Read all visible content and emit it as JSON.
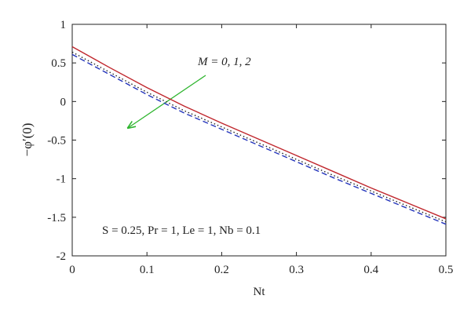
{
  "chart_data": {
    "type": "line",
    "x_label": "Nt",
    "y_label": "−φ′(0)",
    "annotations": [
      "M = 0, 1, 2",
      "S = 0.25, Pr = 1, Le = 1, Nb = 0.1"
    ],
    "x": [
      0,
      0.05,
      0.1,
      0.15,
      0.2,
      0.25,
      0.3,
      0.35,
      0.4,
      0.45,
      0.5
    ],
    "series": [
      {
        "name": "M = 0",
        "color": "#c0272d",
        "style": "solid",
        "values": [
          0.71,
          0.44,
          0.18,
          -0.06,
          -0.28,
          -0.49,
          -0.7,
          -0.91,
          -1.12,
          -1.32,
          -1.52
        ]
      },
      {
        "name": "M = 1",
        "color": "#222222",
        "style": "dotted",
        "values": [
          0.64,
          0.38,
          0.12,
          -0.12,
          -0.33,
          -0.54,
          -0.75,
          -0.96,
          -1.16,
          -1.36,
          -1.56
        ]
      },
      {
        "name": "M = 2",
        "color": "#2233bb",
        "style": "dashed",
        "values": [
          0.61,
          0.35,
          0.09,
          -0.15,
          -0.36,
          -0.57,
          -0.78,
          -0.99,
          -1.19,
          -1.39,
          -1.59
        ]
      }
    ],
    "xlim": [
      0,
      0.5
    ],
    "xticks": [
      0,
      0.1,
      0.2,
      0.3,
      0.4,
      0.5
    ],
    "ylim": [
      -2,
      1
    ],
    "yticks": [
      -2,
      -1.5,
      -1,
      -0.5,
      0,
      0.5,
      1
    ],
    "grid": false
  }
}
